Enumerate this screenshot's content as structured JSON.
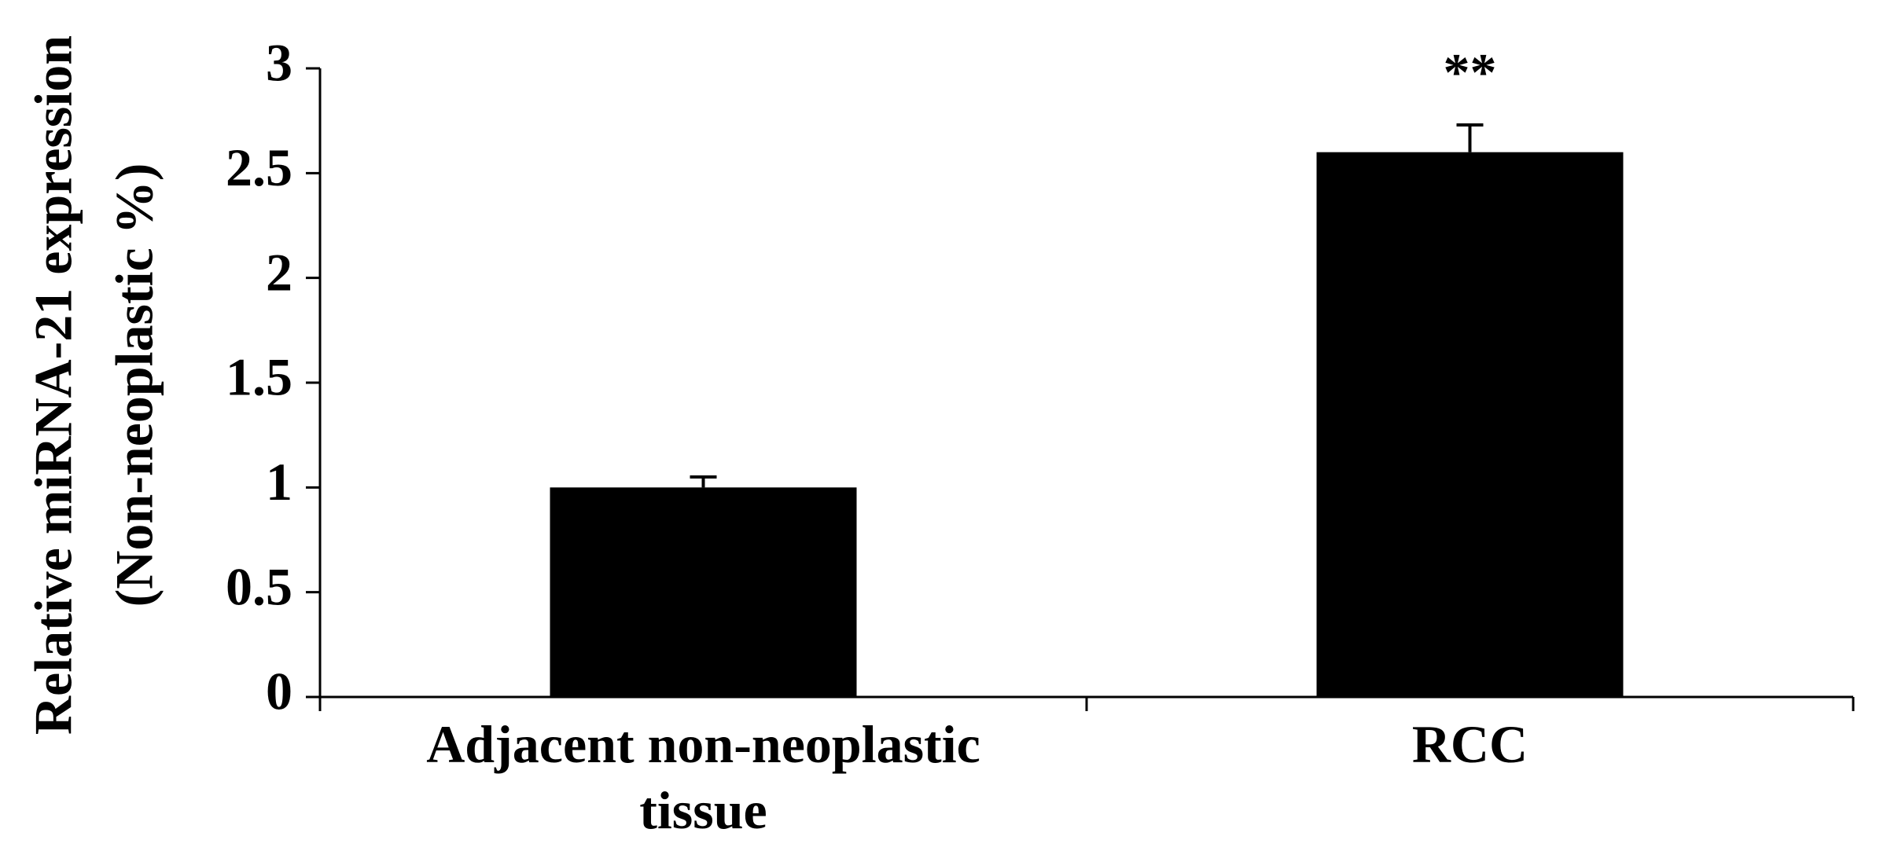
{
  "chart_data": {
    "type": "bar",
    "ylabel": [
      "Relative miRNA-21 expression",
      "(Non-neoplastic %)"
    ],
    "categories": [
      "Adjacent non-neoplastic tissue",
      "RCC"
    ],
    "values": [
      1.0,
      2.6
    ],
    "errors": [
      0.05,
      0.13
    ],
    "significance": [
      null,
      "**"
    ],
    "color": "#000000",
    "ylim": [
      0,
      3
    ],
    "yticks": [
      0,
      0.5,
      1,
      1.5,
      2,
      2.5,
      3
    ],
    "grid": false
  }
}
